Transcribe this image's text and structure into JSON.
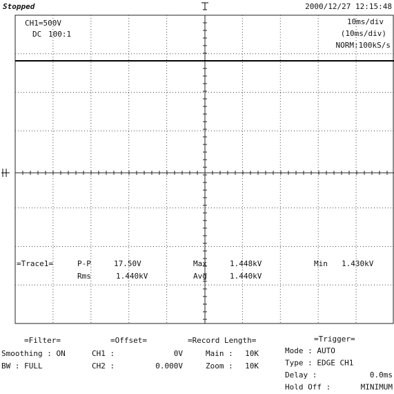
{
  "status": "Stopped",
  "datetime": "2000/12/27  12:15:48",
  "channel": {
    "scale": "CH1=500V",
    "coupling": "DC",
    "probe": "100:1"
  },
  "timebase": {
    "scale": "10ms/div",
    "zoom_scale": "(10ms/div)",
    "sampling": "NORM:100kS/s"
  },
  "measurements": {
    "trace": "=Trace1=",
    "items": [
      {
        "label": "P-P",
        "value": "17.50V"
      },
      {
        "label": "Max",
        "value": "1.448kV"
      },
      {
        "label": "Min",
        "value": "1.430kV"
      },
      {
        "label": "Rms",
        "value": "1.440kV"
      },
      {
        "label": "Avg",
        "value": "1.440kV"
      }
    ]
  },
  "panels": [
    {
      "title": "=Filter=",
      "rows": [
        [
          "Smoothing : ON"
        ],
        [
          "BW : FULL"
        ]
      ]
    },
    {
      "title": "=Offset=",
      "rows": [
        [
          "CH1 :",
          "0V"
        ],
        [
          "CH2 :",
          "0.000V"
        ]
      ]
    },
    {
      "title": "=Record Length=",
      "rows": [
        [
          "Main :",
          "10K"
        ],
        [
          "Zoom :",
          "10K"
        ]
      ]
    },
    {
      "title": "=Trigger=",
      "rows": [
        [
          "Mode : AUTO"
        ],
        [
          "Type : EDGE CH1"
        ],
        [
          "Delay :",
          "0.0ms"
        ],
        [
          "Hold Off :",
          "MINIMUM"
        ]
      ]
    }
  ]
}
